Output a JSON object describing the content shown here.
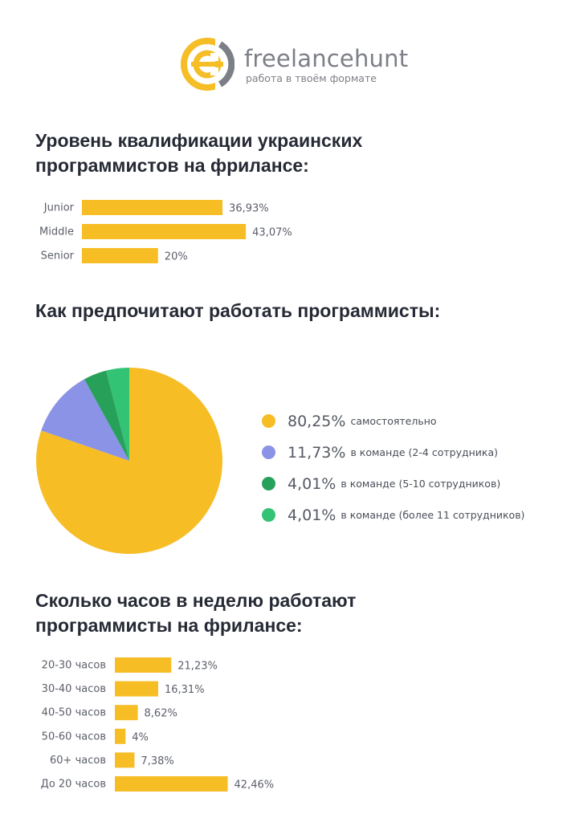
{
  "brand": {
    "name": "freelancehunt",
    "tagline": "работа в твоём формате",
    "logo_icon": "freelancehunt-logo-icon",
    "colors": {
      "yellow": "#F5BD26",
      "gray": "#7C7F86"
    }
  },
  "sections": {
    "qualification_title": "Уровень квалификации украинских программистов на фрилансе:",
    "work_mode_title": "Как предпочитают работать программисты:",
    "hours_title": "Сколько часов в неделю работают программисты на фрилансе:"
  },
  "chart_data": [
    {
      "type": "bar",
      "orientation": "horizontal",
      "categories": [
        "Junior",
        "Middle",
        "Senior"
      ],
      "values": [
        36.93,
        43.07,
        20
      ],
      "value_labels": [
        "36,93%",
        "43,07%",
        "20%"
      ],
      "color": "#F7BD25"
    },
    {
      "type": "pie",
      "categories": [
        "самостоятельно",
        "в команде (2-4 сотрудника)",
        "в команде (5-10 сотрудников)",
        "в команде (более 11 сотрудников)"
      ],
      "values": [
        80.25,
        11.73,
        4.01,
        4.01
      ],
      "value_labels": [
        "80,25%",
        "11,73%",
        "4,01%",
        "4,01%"
      ],
      "colors": [
        "#F7BD25",
        "#8A93E6",
        "#27A05A",
        "#33C374"
      ],
      "legend": "right"
    },
    {
      "type": "bar",
      "orientation": "horizontal",
      "categories": [
        "20-30 часов",
        "30-40 часов",
        "40-50 часов",
        "50-60 часов",
        "60+ часов",
        "До 20 часов"
      ],
      "values": [
        21.23,
        16.31,
        8.62,
        4,
        7.38,
        42.46
      ],
      "value_labels": [
        "21,23%",
        "16,31%",
        "8,62%",
        "4%",
        "7,38%",
        "42,46%"
      ],
      "color": "#F7BD25"
    }
  ]
}
